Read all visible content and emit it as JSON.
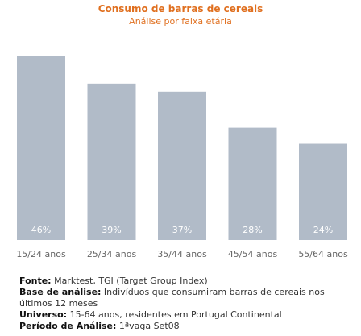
{
  "chart_data": {
    "type": "bar",
    "title": "Consumo de barras de cereais",
    "subtitle": "Análise por faixa etária",
    "categories": [
      "15/24 anos",
      "25/34 anos",
      "35/44 anos",
      "45/54 anos",
      "55/64 anos"
    ],
    "values": [
      46,
      39,
      37,
      28,
      24
    ],
    "value_labels": [
      "46%",
      "39%",
      "37%",
      "28%",
      "24%"
    ],
    "ylim": [
      0,
      46
    ],
    "grid": false,
    "bar_color": "#b1bbc8"
  },
  "notes": {
    "fonte_label": "Fonte:",
    "fonte_text": " Marktest, TGI (Target Group Index)",
    "base_label": "Base de análise:",
    "base_text": " Indivíduos que consumiram barras de cereais nos últimos 12 meses",
    "universo_label": "Universo:",
    "universo_text": " 15-64 anos, residentes em Portugal Continental",
    "periodo_label": "Período de Análise:",
    "periodo_text": " 1ªvaga Set08"
  }
}
